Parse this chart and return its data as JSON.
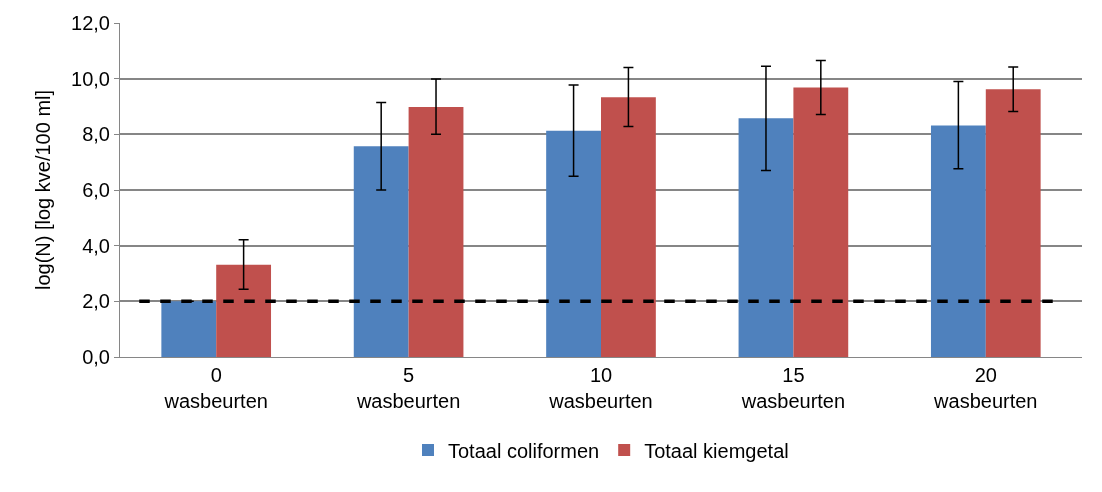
{
  "chart_data": {
    "type": "bar",
    "ylabel": "log(N) [log kve/100 ml]",
    "categories": [
      "0\nwasbeurten",
      "5\nwasbeurten",
      "10\nwasbeurten",
      "15\nwasbeurten",
      "20\nwasbeurten"
    ],
    "series": [
      {
        "name": "Totaal coliformen",
        "color": "#4f81bd",
        "values": [
          2.0,
          7.57,
          8.13,
          8.58,
          8.32
        ],
        "errors": [
          null,
          [
            6.0,
            9.14
          ],
          [
            6.49,
            9.77
          ],
          [
            6.7,
            10.45
          ],
          [
            6.76,
            9.9
          ]
        ]
      },
      {
        "name": "Totaal kiemgetal",
        "color": "#c0504d",
        "values": [
          3.31,
          8.98,
          9.33,
          9.68,
          9.62
        ],
        "errors": [
          [
            2.43,
            4.21
          ],
          [
            8.0,
            9.99
          ],
          [
            8.28,
            10.4
          ],
          [
            8.71,
            10.65
          ],
          [
            8.82,
            10.42
          ]
        ]
      }
    ],
    "ylim": [
      0,
      12
    ],
    "yticks": [
      {
        "value": 0,
        "label": "0,0"
      },
      {
        "value": 2,
        "label": "2,0"
      },
      {
        "value": 4,
        "label": "4,0"
      },
      {
        "value": 6,
        "label": "6,0"
      },
      {
        "value": 8,
        "label": "8,0"
      },
      {
        "value": 10,
        "label": "10,0"
      },
      {
        "value": 12,
        "label": "12,0"
      }
    ],
    "ref_lines": [
      {
        "axis": "y",
        "value": 2,
        "color": "#000000",
        "line_style": "dashed"
      }
    ],
    "grid": "y",
    "legend": "bottom"
  }
}
